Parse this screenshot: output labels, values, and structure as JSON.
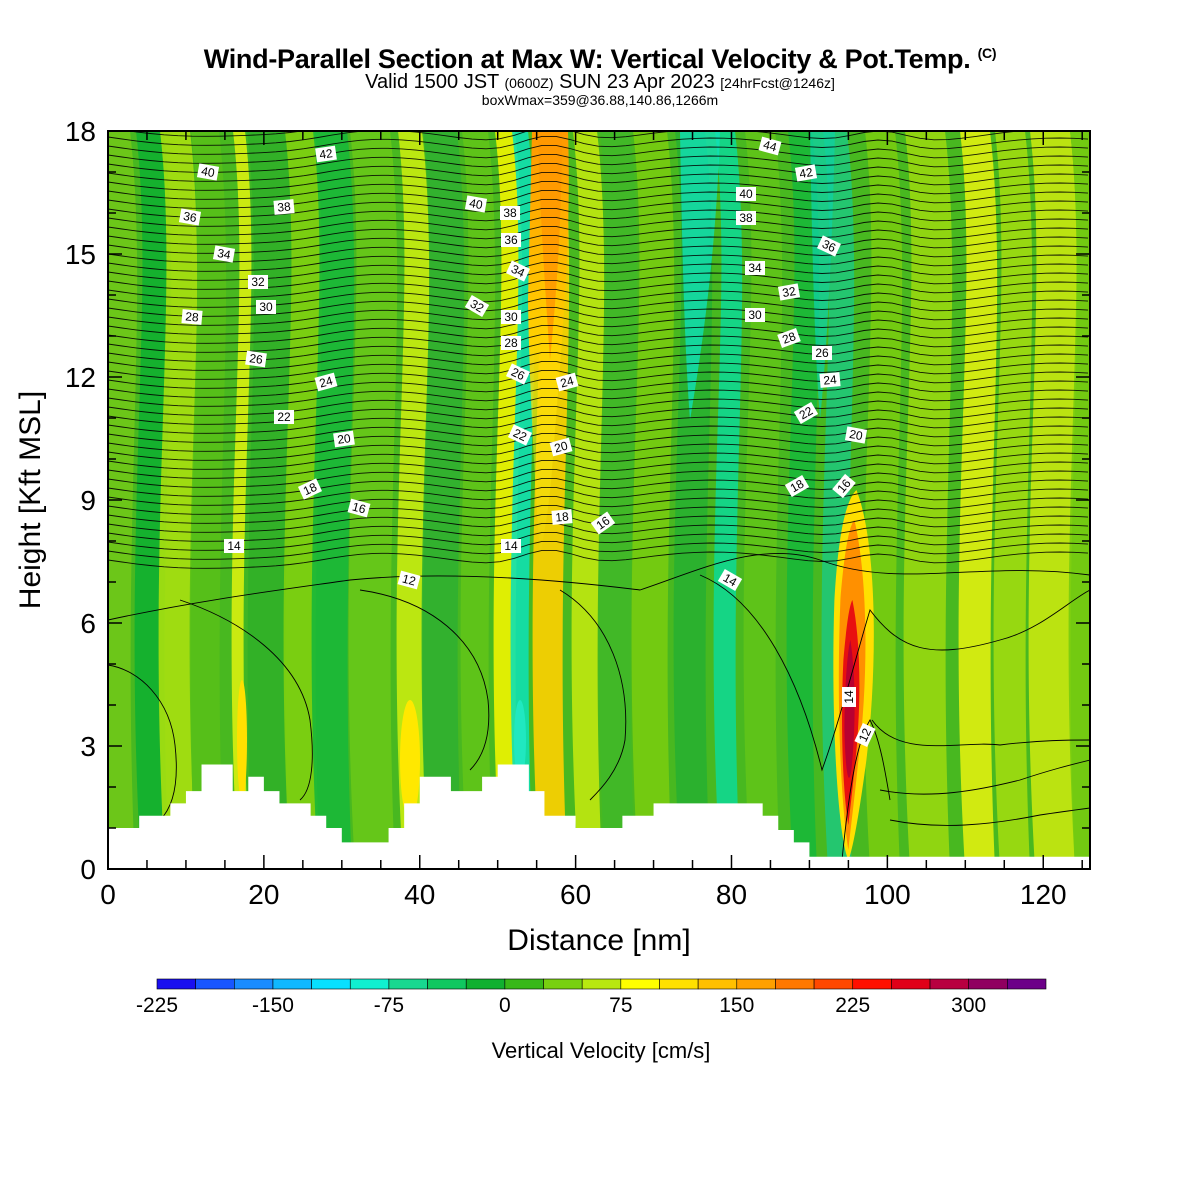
{
  "header": {
    "title": "Wind-Parallel Section at Max W: Vertical Velocity & Pot.Temp.",
    "copyright": "(C)",
    "valid_prefix": "Valid 1500 JST",
    "valid_utc": "(0600Z)",
    "valid_date": "SUN 23 Apr 2023",
    "forecast": "[24hrFcst@1246z]",
    "box_info": "boxWmax=359@36.88,140.86,1266m"
  },
  "chart_data": {
    "type": "heatmap",
    "xlabel": "Distance [nm]",
    "ylabel": "Height [Kft MSL]",
    "xlim": [
      0,
      126
    ],
    "ylim": [
      0,
      18
    ],
    "x_ticks": [
      "0",
      "20",
      "40",
      "60",
      "80",
      "100",
      "120"
    ],
    "y_ticks": [
      "0",
      "3",
      "6",
      "9",
      "12",
      "15",
      "18"
    ],
    "colorbar": {
      "title": "Vertical Velocity [cm/s]",
      "tick_labels": [
        "-225",
        "-150",
        "-75",
        "0",
        "75",
        "150",
        "225",
        "300"
      ],
      "colors": [
        "#1a0ff0",
        "#1856ff",
        "#1a8cff",
        "#10b8ff",
        "#08e0ff",
        "#10f0d0",
        "#18d890",
        "#10c860",
        "#10b030",
        "#38b818",
        "#78d010",
        "#b8e810",
        "#ffff00",
        "#ffe000",
        "#ffc000",
        "#ffa000",
        "#ff7800",
        "#ff4800",
        "#ff1000",
        "#e00018",
        "#b80040",
        "#900060",
        "#6c0088"
      ]
    },
    "theta_contour_labels": [
      "12",
      "14",
      "16",
      "18",
      "20",
      "22",
      "24",
      "26",
      "28",
      "30",
      "32",
      "34",
      "36",
      "38",
      "40",
      "42",
      "44"
    ],
    "max_updraft": {
      "x": 95,
      "height_kft": 4.5,
      "value_cm_s": 359
    },
    "terrain_kft": {
      "x": [
        0,
        2,
        4,
        6,
        8,
        10,
        12,
        14,
        16,
        18,
        20,
        22,
        24,
        26,
        28,
        30,
        32,
        34,
        36,
        38,
        40,
        42,
        44,
        46,
        48,
        50,
        52,
        54,
        56,
        58,
        60,
        62,
        64,
        66,
        68,
        70,
        72,
        74,
        76,
        78,
        80,
        82,
        84,
        86,
        88,
        90,
        92,
        94,
        96,
        98,
        100,
        110,
        120,
        126
      ],
      "h": [
        1.0,
        1.0,
        1.3,
        1.3,
        1.6,
        1.9,
        2.55,
        2.55,
        1.9,
        2.25,
        1.9,
        1.6,
        1.6,
        1.3,
        1.0,
        0.65,
        0.65,
        0.65,
        1.0,
        1.6,
        2.25,
        2.25,
        1.9,
        1.9,
        2.25,
        2.55,
        2.55,
        1.9,
        1.3,
        1.3,
        1.0,
        1.0,
        1.0,
        1.3,
        1.3,
        1.6,
        1.6,
        1.6,
        1.6,
        1.6,
        1.6,
        1.6,
        1.3,
        0.95,
        0.65,
        0.3,
        0.3,
        0.3,
        0.3,
        0.3,
        0.3,
        0.3,
        0.3,
        0.3
      ]
    }
  }
}
